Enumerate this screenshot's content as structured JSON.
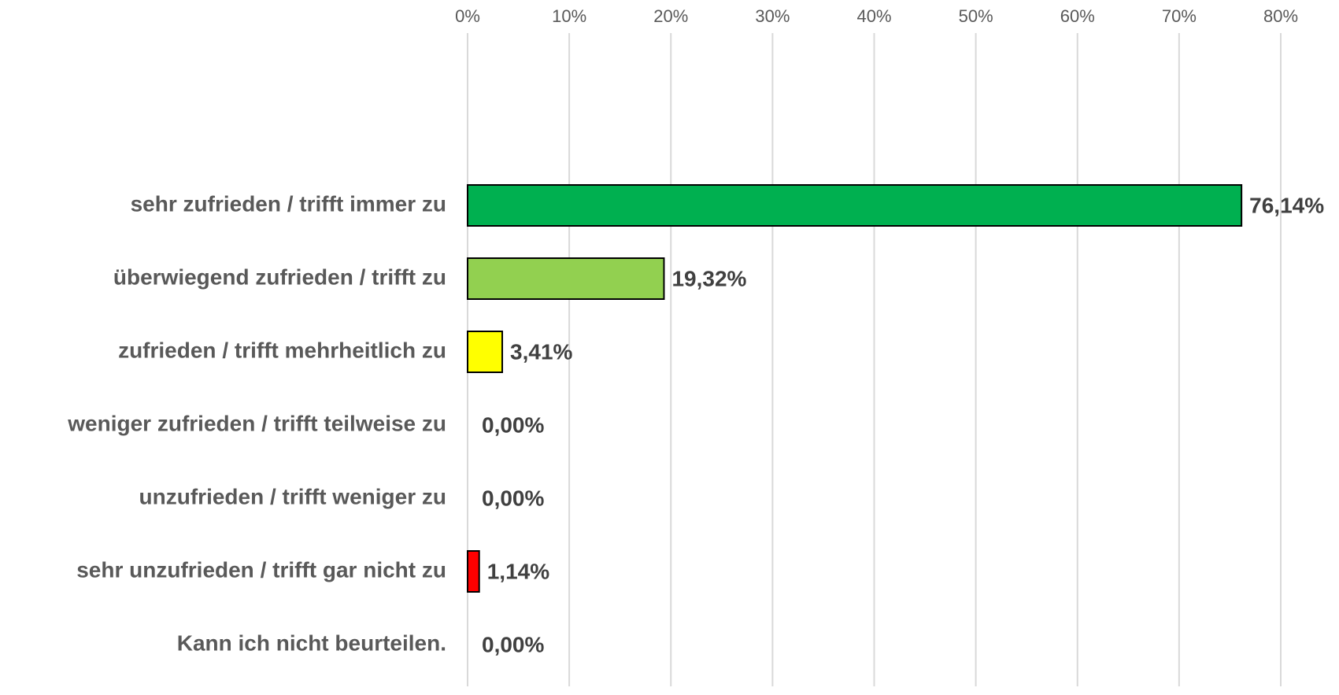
{
  "chart_data": {
    "type": "bar",
    "orientation": "horizontal",
    "categories": [
      "sehr zufrieden / trifft immer zu",
      "überwiegend zufrieden / trifft zu",
      "zufrieden / trifft mehrheitlich zu",
      "weniger zufrieden / trifft teilweise zu",
      "unzufrieden / trifft weniger zu",
      "sehr unzufrieden / trifft gar nicht zu",
      "Kann ich nicht beurteilen."
    ],
    "values": [
      76.14,
      19.32,
      3.41,
      0,
      0,
      1.14,
      0
    ],
    "value_labels": [
      "76,14%",
      "19,32%",
      "3,41%",
      "0,00%",
      "0,00%",
      "1,14%",
      "0,00%"
    ],
    "colors": [
      "#00b050",
      "#92d050",
      "#ffff00",
      "#ffc000",
      "#ff9900",
      "#ff0000",
      "#a6a6a6"
    ],
    "xlim": [
      0,
      80
    ],
    "xticks": [
      {
        "value": 0,
        "label": "0%"
      },
      {
        "value": 10,
        "label": "10%"
      },
      {
        "value": 20,
        "label": "20%"
      },
      {
        "value": 30,
        "label": "30%"
      },
      {
        "value": 40,
        "label": "40%"
      },
      {
        "value": 50,
        "label": "50%"
      },
      {
        "value": 60,
        "label": "60%"
      },
      {
        "value": 70,
        "label": "70%"
      },
      {
        "value": 80,
        "label": "80%"
      }
    ],
    "grid": true
  }
}
